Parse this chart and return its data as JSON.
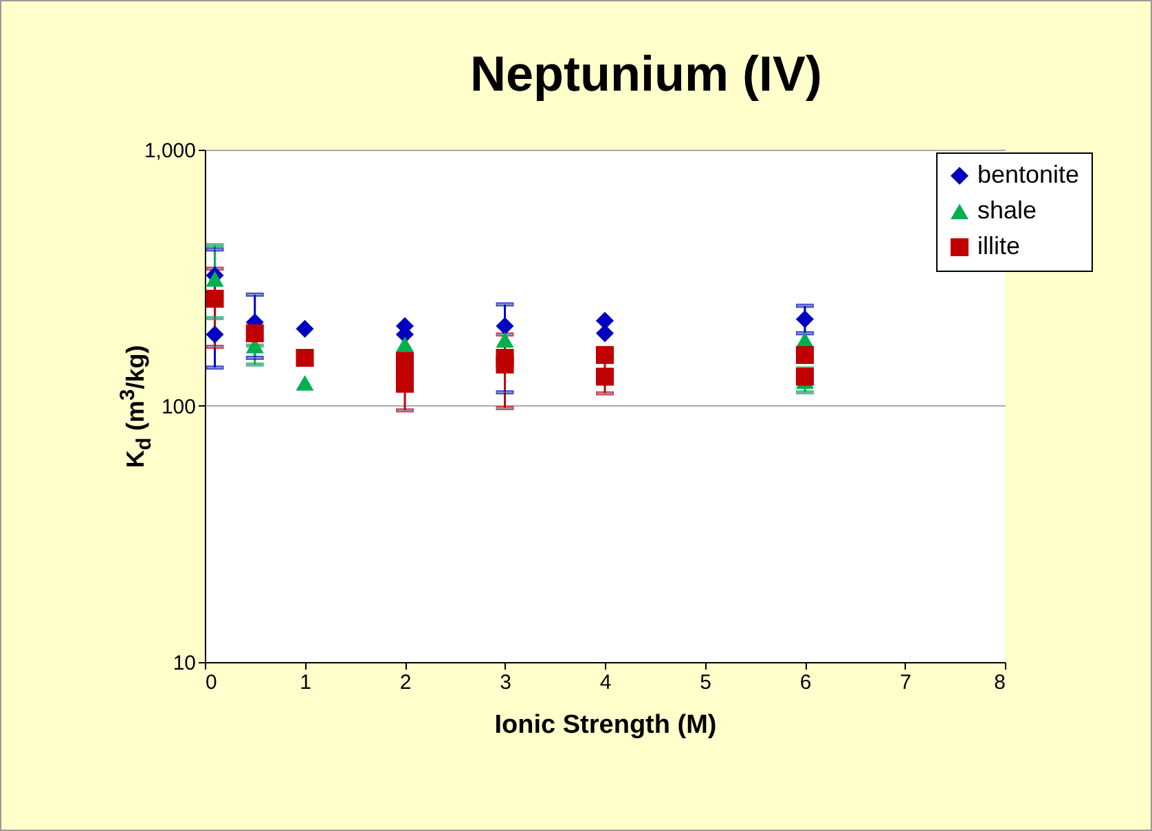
{
  "chart_data": {
    "type": "scatter",
    "title": "Neptunium (IV)",
    "xlabel": "Ionic Strength (M)",
    "ylabel": "K$_{d}$ (m$^{3}$/kg)",
    "xlim": [
      0,
      8
    ],
    "xticks": [
      0,
      1,
      2,
      3,
      4,
      5,
      6,
      7,
      8
    ],
    "ylim": [
      10,
      1000
    ],
    "yticks": [
      10,
      100,
      {
        "value": 1000,
        "label": "1,000"
      }
    ],
    "log": "y",
    "grid": "y",
    "legend": "top right",
    "series": [
      {
        "name": "bentonite",
        "color": "#0000c0",
        "marker": "diamond",
        "x": [
          0.1,
          0.1,
          0.5,
          1,
          2,
          2,
          3,
          4,
          4,
          6
        ],
        "values": [
          323,
          190,
          212,
          200,
          205,
          190,
          205,
          215,
          192,
          218
        ],
        "errors": [
          null,
          [
            141,
            408
          ],
          [
            154,
            272
          ],
          null,
          null,
          null,
          [
            113,
            249
          ],
          null,
          null,
          [
            192,
            246
          ]
        ]
      },
      {
        "name": "shale",
        "color": "#00b050",
        "marker": "triangle",
        "x": [
          0.1,
          0.5,
          1,
          2,
          3,
          6,
          6
        ],
        "values": [
          313,
          172,
          123,
          174,
          181,
          181,
          125
        ],
        "errors": [
          [
            220,
            424
          ],
          [
            145,
            172
          ],
          null,
          null,
          null,
          null,
          [
            113,
            140
          ]
        ]
      },
      {
        "name": "illite",
        "color": "#c00000",
        "marker": "square",
        "x": [
          0.1,
          0.5,
          1,
          2,
          2,
          2,
          3,
          3,
          4,
          4,
          6,
          6
        ],
        "values": [
          262,
          192,
          154,
          150,
          135,
          122,
          154,
          145,
          158,
          130,
          158,
          130
        ],
        "errors": [
          [
            170,
            343
          ],
          null,
          null,
          null,
          null,
          [
            96,
            122
          ],
          null,
          [
            98,
            190
          ],
          null,
          [
            112,
            150
          ],
          null,
          null
        ]
      }
    ]
  }
}
